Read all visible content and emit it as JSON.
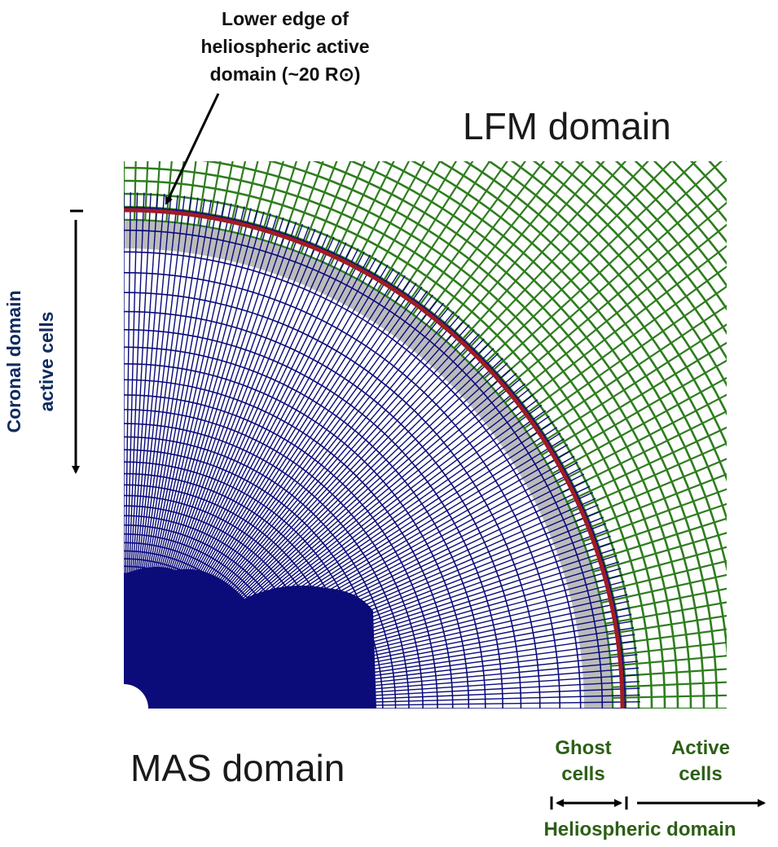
{
  "annotation": {
    "lines": [
      "Lower edge of",
      "heliospheric active",
      "domain (~20 R⊙)"
    ]
  },
  "labels": {
    "lfm_domain": "LFM domain",
    "mas_domain": "MAS domain",
    "coronal_line1": "Coronal domain",
    "coronal_line2": "active cells",
    "ghost_line1": "Ghost",
    "ghost_line2": "cells",
    "active_line1": "Active",
    "active_line2": "cells",
    "heliospheric_domain": "Heliospheric domain"
  },
  "colors": {
    "mas_grid": "#0b0b7a",
    "lfm_grid": "#2e7d1e",
    "ghost_band": "#b4b4b4",
    "boundary": "#a01c24",
    "coronal_text": "#0f2a60",
    "helio_text": "#2d5f16"
  }
}
